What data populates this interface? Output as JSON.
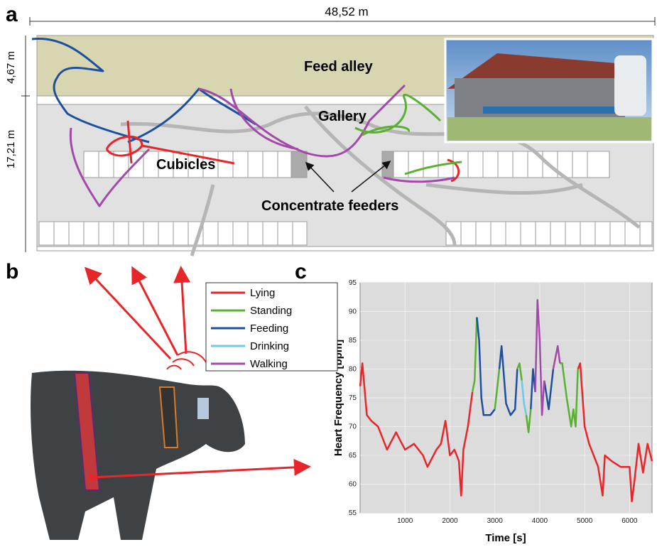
{
  "panel_labels": [
    "a",
    "b",
    "c"
  ],
  "map": {
    "width_label": "48,52 m",
    "feed_depth_label": "4,67 m",
    "depth_label": "17,21 m",
    "feed_alley": "Feed alley",
    "gallery": "Gallery",
    "cubicles": "Cubicles",
    "feeders": "Concentrate feeders"
  },
  "chart_data": {
    "type": "line",
    "xlabel": "Time [s]",
    "ylabel": "Heart Frequency [bpm]",
    "xlim": [
      0,
      6500
    ],
    "ylim": [
      55,
      95
    ],
    "xticks": [
      1000,
      2000,
      3000,
      4000,
      5000,
      6000
    ],
    "yticks": [
      55,
      60,
      65,
      70,
      75,
      80,
      85,
      90,
      95
    ],
    "grid": true,
    "series": [
      {
        "name": "Lying",
        "color": "#e8262a",
        "x": [
          0,
          50,
          150,
          250,
          400,
          500,
          600,
          800,
          1000,
          1200,
          1400,
          1500,
          1700,
          1800,
          1900,
          2000,
          2100,
          2200,
          2250,
          2300,
          2400,
          2500,
          null,
          4850,
          4900,
          5000,
          5100,
          5200,
          5300,
          5400,
          5450,
          5600,
          5800,
          6000,
          6050,
          6100,
          6200,
          6300,
          6400,
          6500
        ],
        "values": [
          77,
          81,
          72,
          71,
          70,
          68,
          66,
          69,
          66,
          67,
          65,
          63,
          66,
          67,
          71,
          65,
          66,
          64,
          58,
          66,
          70,
          76,
          null,
          80,
          81,
          70,
          67,
          65,
          63,
          58,
          65,
          64,
          63,
          63,
          57,
          60,
          67,
          62,
          67,
          64
        ]
      },
      {
        "name": "Standing",
        "color": "#5ab031",
        "x": [
          2500,
          2550,
          2600,
          null,
          3000,
          3100,
          null,
          3500,
          3550,
          3600,
          null,
          3700,
          3750,
          3800,
          null,
          4450,
          4500,
          4600,
          4700,
          4750,
          4800,
          4850
        ],
        "values": [
          76,
          78,
          89,
          null,
          73,
          80,
          null,
          80,
          81,
          78,
          null,
          72,
          69,
          73,
          null,
          81,
          81,
          75,
          70,
          73,
          70,
          80
        ]
      },
      {
        "name": "Feeding",
        "color": "#1d4fa0",
        "x": [
          2600,
          2650,
          2700,
          2750,
          2900,
          3000,
          null,
          3100,
          3150,
          3200,
          3250,
          3350,
          3450,
          3500,
          null,
          3800,
          3850,
          3900,
          null,
          4100,
          4200,
          4300
        ],
        "values": [
          89,
          85,
          75,
          72,
          72,
          73,
          null,
          80,
          84,
          79,
          74,
          72,
          73,
          80,
          null,
          73,
          80,
          76,
          null,
          78,
          73,
          80
        ]
      },
      {
        "name": "Drinking",
        "color": "#6cc9e8",
        "x": [
          3600,
          3650,
          3700
        ],
        "values": [
          78,
          74,
          72
        ]
      },
      {
        "name": "Walking",
        "color": "#a24aa8",
        "x": [
          3900,
          3950,
          4000,
          4050,
          4100,
          null,
          4300,
          4400,
          4450
        ],
        "values": [
          76,
          92,
          85,
          72,
          78,
          null,
          80,
          84,
          81
        ]
      }
    ]
  }
}
